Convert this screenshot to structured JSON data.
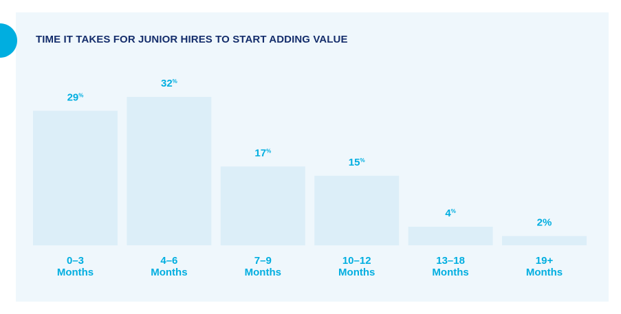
{
  "chart_data": {
    "type": "bar",
    "title": "TIME IT TAKES FOR JUNIOR HIRES TO START ADDING VALUE",
    "categories": [
      {
        "line1": "0–3",
        "line2": "Months"
      },
      {
        "line1": "4–6",
        "line2": "Months"
      },
      {
        "line1": "7–9",
        "line2": "Months"
      },
      {
        "line1": "10–12",
        "line2": "Months"
      },
      {
        "line1": "13–18",
        "line2": "Months"
      },
      {
        "line1": "19+",
        "line2": "Months"
      }
    ],
    "values": [
      29,
      32,
      17,
      15,
      4,
      2
    ],
    "value_labels": [
      {
        "number": "29",
        "unit": "%"
      },
      {
        "number": "32",
        "unit": "%"
      },
      {
        "number": "17",
        "unit": "%"
      },
      {
        "number": "15",
        "unit": "%"
      },
      {
        "number": "4",
        "unit": "%"
      },
      {
        "number": "2%",
        "unit": ""
      }
    ],
    "ylim": [
      0,
      32
    ],
    "grid": false,
    "colors": {
      "bar": "#dceef8",
      "label": "#00aee0",
      "title": "#142d6b",
      "panel": "#eff7fc",
      "accent": "#00aee0"
    }
  }
}
